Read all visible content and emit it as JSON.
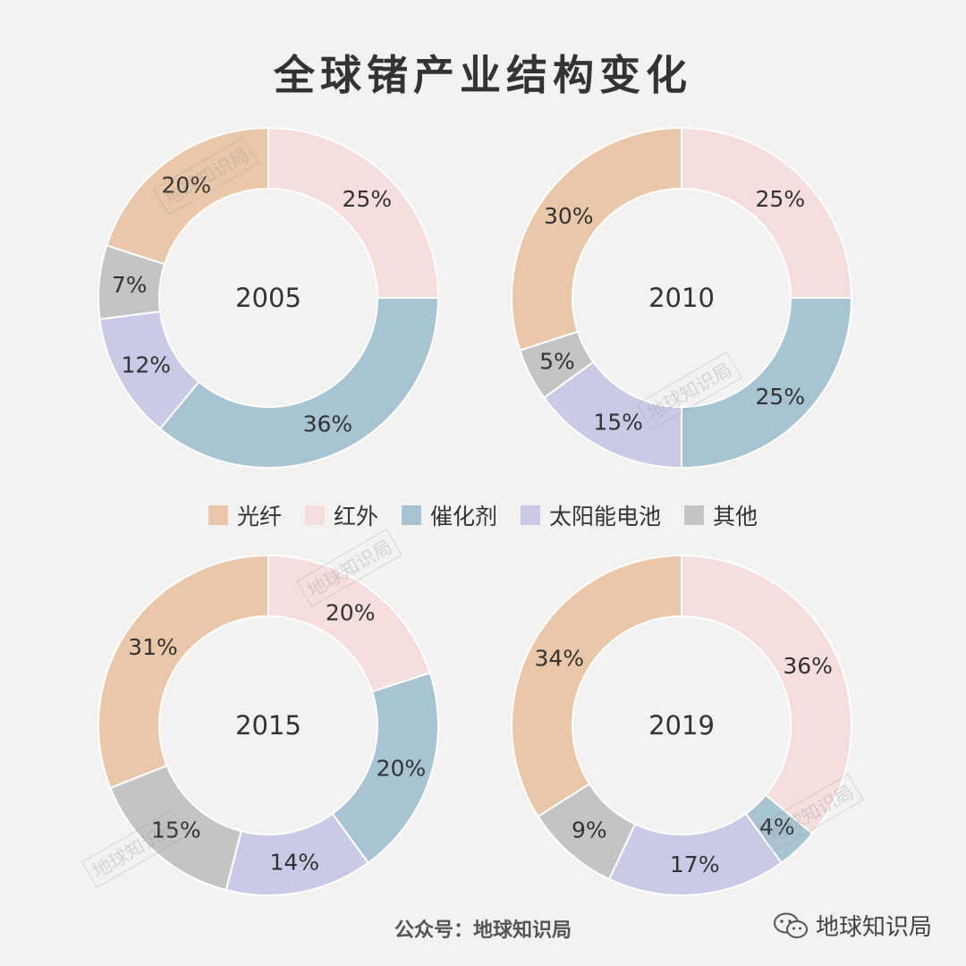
{
  "title": "全球锗产业结构变化",
  "colors": {
    "光纤": "#eac7a9",
    "红外": "#f5dedd",
    "催化剂": "#a8c4d3",
    "太阳能电池": "#c9cae6",
    "其他": "#c4c4c4"
  },
  "legend": [
    {
      "label": "光纤"
    },
    {
      "label": "红外"
    },
    {
      "label": "催化剂"
    },
    {
      "label": "太阳能电池"
    },
    {
      "label": "其他"
    }
  ],
  "chart_data": [
    {
      "type": "pie",
      "center_label": "2005",
      "slices": [
        {
          "category": "红外",
          "value": 25,
          "label": "25%"
        },
        {
          "category": "催化剂",
          "value": 36,
          "label": "36%"
        },
        {
          "category": "太阳能电池",
          "value": 12,
          "label": "12%"
        },
        {
          "category": "其他",
          "value": 7,
          "label": "7%"
        },
        {
          "category": "光纤",
          "value": 20,
          "label": "20%"
        }
      ]
    },
    {
      "type": "pie",
      "center_label": "2010",
      "slices": [
        {
          "category": "红外",
          "value": 25,
          "label": "25%"
        },
        {
          "category": "催化剂",
          "value": 25,
          "label": "25%"
        },
        {
          "category": "太阳能电池",
          "value": 15,
          "label": "15%"
        },
        {
          "category": "其他",
          "value": 5,
          "label": "5%"
        },
        {
          "category": "光纤",
          "value": 30,
          "label": "30%"
        }
      ]
    },
    {
      "type": "pie",
      "center_label": "2015",
      "slices": [
        {
          "category": "红外",
          "value": 20,
          "label": "20%"
        },
        {
          "category": "催化剂",
          "value": 20,
          "label": "20%"
        },
        {
          "category": "太阳能电池",
          "value": 14,
          "label": "14%"
        },
        {
          "category": "其他",
          "value": 15,
          "label": "15%"
        },
        {
          "category": "光纤",
          "value": 31,
          "label": "31%"
        }
      ]
    },
    {
      "type": "pie",
      "center_label": "2019",
      "slices": [
        {
          "category": "红外",
          "value": 36,
          "label": "36%"
        },
        {
          "category": "催化剂",
          "value": 4,
          "label": "4%"
        },
        {
          "category": "太阳能电池",
          "value": 17,
          "label": "17%"
        },
        {
          "category": "其他",
          "value": 9,
          "label": "9%"
        },
        {
          "category": "光纤",
          "value": 34,
          "label": "34%"
        }
      ]
    }
  ],
  "watermark": "地球知识局",
  "footer": "公众号：地球知识局",
  "brand": {
    "text": "地球知识局",
    "icon": "wechat-icon"
  }
}
